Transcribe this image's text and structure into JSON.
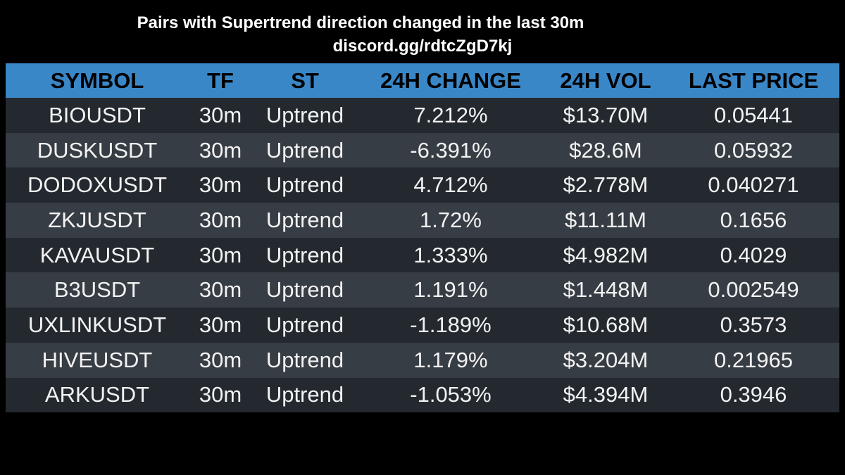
{
  "header": {
    "title": "Pairs with Supertrend direction changed in the last 30m",
    "subtitle": "discord.gg/rdtcZgD7kj"
  },
  "table": {
    "columns": [
      "SYMBOL",
      "TF",
      "ST",
      "24H CHANGE",
      "24H VOL",
      "LAST PRICE"
    ],
    "rows": [
      [
        "BIOUSDT",
        "30m",
        "Uptrend",
        "7.212%",
        "$13.70M",
        "0.05441"
      ],
      [
        "DUSKUSDT",
        "30m",
        "Uptrend",
        "-6.391%",
        "$28.6M",
        "0.05932"
      ],
      [
        "DODOXUSDT",
        "30m",
        "Uptrend",
        "4.712%",
        "$2.778M",
        "0.040271"
      ],
      [
        "ZKJUSDT",
        "30m",
        "Uptrend",
        "1.72%",
        "$11.11M",
        "0.1656"
      ],
      [
        "KAVAUSDT",
        "30m",
        "Uptrend",
        "1.333%",
        "$4.982M",
        "0.4029"
      ],
      [
        "B3USDT",
        "30m",
        "Uptrend",
        "1.191%",
        "$1.448M",
        "0.002549"
      ],
      [
        "UXLINKUSDT",
        "30m",
        "Uptrend",
        "-1.189%",
        "$10.68M",
        "0.3573"
      ],
      [
        "HIVEUSDT",
        "30m",
        "Uptrend",
        "1.179%",
        "$3.204M",
        "0.21965"
      ],
      [
        "ARKUSDT",
        "30m",
        "Uptrend",
        "-1.053%",
        "$4.394M",
        "0.3946"
      ]
    ]
  }
}
